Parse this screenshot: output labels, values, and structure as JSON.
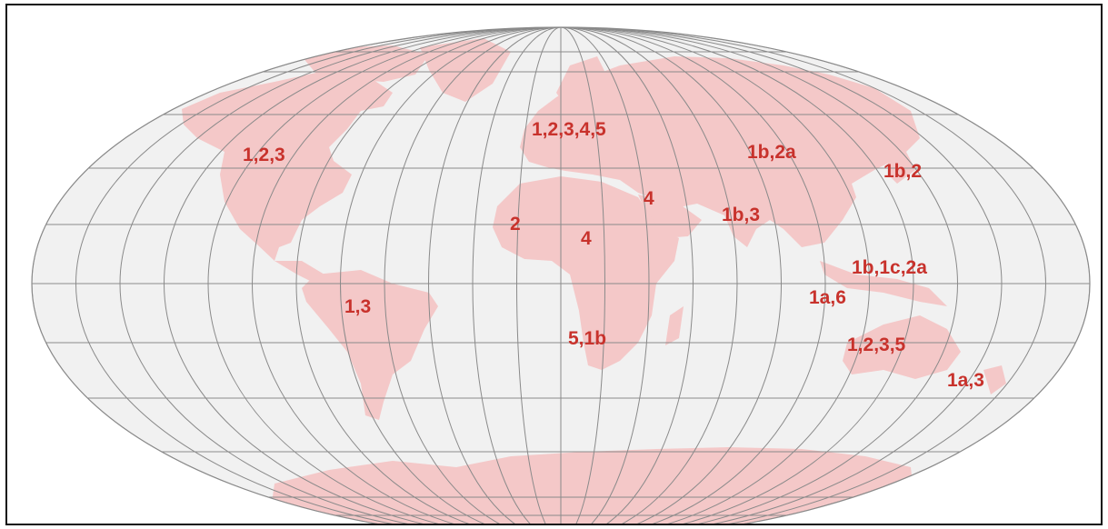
{
  "map": {
    "colors": {
      "ocean": "#f1f1f1",
      "land": "#f4c8c8",
      "grid": "#8a8a8a",
      "label": "#c8322c",
      "frame": "#111111"
    },
    "labels": [
      {
        "id": "north-america",
        "text": "1,2,3"
      },
      {
        "id": "europe",
        "text": "1,2,3,4,5"
      },
      {
        "id": "russia",
        "text": "1b,2a"
      },
      {
        "id": "east-asia",
        "text": "1b,2"
      },
      {
        "id": "middle-east",
        "text": "4"
      },
      {
        "id": "west-africa",
        "text": "2"
      },
      {
        "id": "north-africa",
        "text": "4"
      },
      {
        "id": "south-asia",
        "text": "1b,3"
      },
      {
        "id": "southeast-asia",
        "text": "1b,1c,2a"
      },
      {
        "id": "indonesia",
        "text": "1a,6"
      },
      {
        "id": "south-america",
        "text": "1,3"
      },
      {
        "id": "southern-africa",
        "text": "5,1b"
      },
      {
        "id": "australia",
        "text": "1,2,3,5"
      },
      {
        "id": "new-zealand",
        "text": "1a,3"
      }
    ]
  }
}
